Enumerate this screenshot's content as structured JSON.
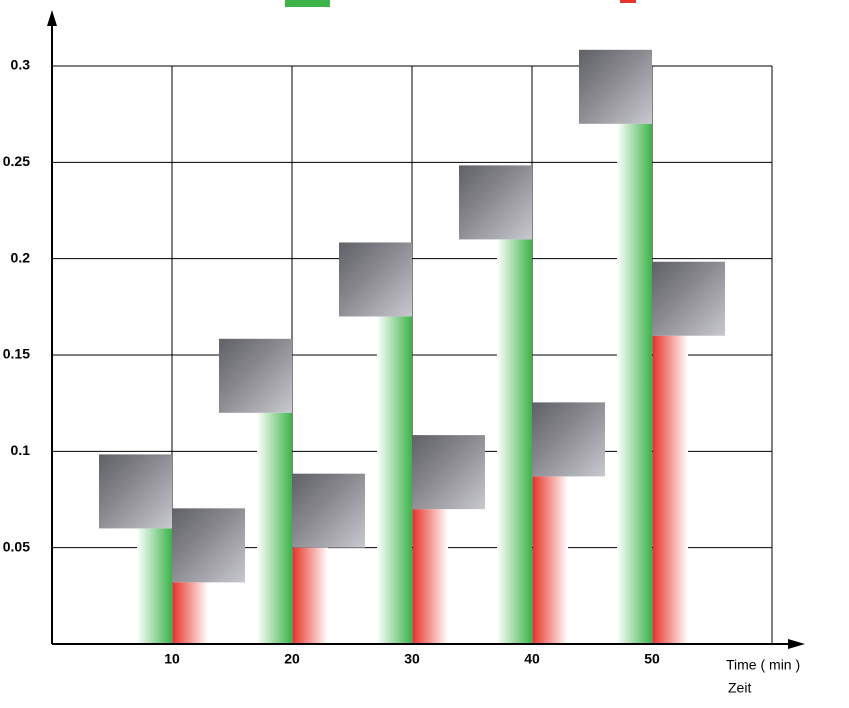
{
  "chart_data": {
    "type": "bar",
    "categories": [
      "10",
      "20",
      "30",
      "40",
      "50"
    ],
    "series": [
      {
        "color": "#3db34a",
        "values": [
          0.06,
          0.12,
          0.17,
          0.21,
          0.27
        ]
      },
      {
        "color": "#e8352b",
        "values": [
          0.032,
          0.05,
          0.07,
          0.087,
          0.16
        ]
      }
    ],
    "ylim": [
      0,
      0.3
    ],
    "yticks": [
      0.05,
      0.1,
      0.15,
      0.2,
      0.25,
      0.3
    ],
    "grid": true,
    "xlabel": "Time ( min )",
    "xlabel_2": "Zeit"
  }
}
